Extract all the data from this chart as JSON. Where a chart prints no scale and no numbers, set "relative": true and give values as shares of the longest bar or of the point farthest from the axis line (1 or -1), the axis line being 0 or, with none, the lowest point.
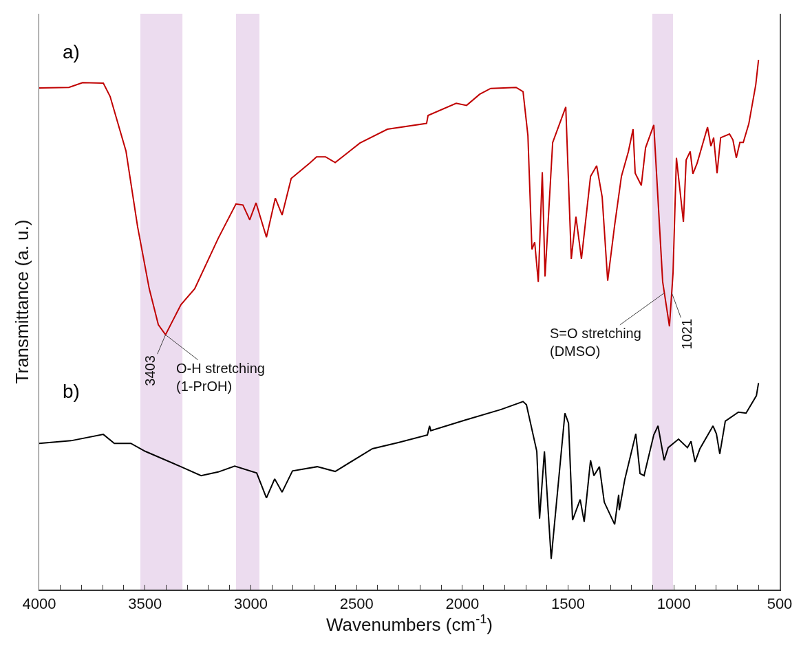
{
  "chart_data": {
    "type": "line",
    "relative": true,
    "xlabel": "Wavenumbers (cm$^{-1}$)",
    "ylabel": "Transmittance (a. u.)",
    "xlim": [
      4000,
      500
    ],
    "xticks": [
      4000,
      {
        "value": 3900,
        "label": null
      },
      {
        "value": 3800,
        "label": null
      },
      {
        "value": 3700,
        "label": null
      },
      {
        "value": 3600,
        "label": null
      },
      3500,
      {
        "value": 3400,
        "label": null
      },
      {
        "value": 3300,
        "label": null
      },
      {
        "value": 3200,
        "label": null
      },
      {
        "value": 3100,
        "label": null
      },
      3000,
      {
        "value": 2900,
        "label": null
      },
      {
        "value": 2800,
        "label": null
      },
      {
        "value": 2700,
        "label": null
      },
      {
        "value": 2600,
        "label": null
      },
      2500,
      {
        "value": 2400,
        "label": null
      },
      {
        "value": 2300,
        "label": null
      },
      {
        "value": 2200,
        "label": null
      },
      {
        "value": 2100,
        "label": null
      },
      2000,
      {
        "value": 1900,
        "label": null
      },
      {
        "value": 1800,
        "label": null
      },
      {
        "value": 1700,
        "label": null
      },
      {
        "value": 1600,
        "label": null
      },
      1500,
      {
        "value": 1400,
        "label": null
      },
      {
        "value": 1300,
        "label": null
      },
      {
        "value": 1200,
        "label": null
      },
      {
        "value": 1100,
        "label": null
      },
      1000,
      {
        "value": 900,
        "label": null
      },
      {
        "value": 800,
        "label": null
      },
      {
        "value": 700,
        "label": null
      },
      {
        "value": 600,
        "label": null
      },
      500
    ],
    "grid": false,
    "legend": false,
    "marker": "none",
    "line_style": "solid",
    "series": [
      {
        "name": "a)",
        "color": "#c00000",
        "x": [
          4000,
          3860,
          3795,
          3697,
          3665,
          3590,
          3535,
          3480,
          3437,
          3403,
          3330,
          3265,
          3154,
          3070,
          3037,
          3005,
          2975,
          2926,
          2884,
          2852,
          2809,
          2764,
          2722,
          2689,
          2647,
          2601,
          2484,
          2354,
          2169,
          2162,
          2029,
          1980,
          1918,
          1866,
          1746,
          1713,
          1690,
          1671,
          1658,
          1641,
          1622,
          1609,
          1573,
          1511,
          1485,
          1463,
          1437,
          1394,
          1365,
          1339,
          1313,
          1280,
          1248,
          1215,
          1193,
          1183,
          1154,
          1134,
          1095,
          1053,
          1021,
          1004,
          988,
          955,
          942,
          923,
          910,
          890,
          841,
          825,
          812,
          796,
          779,
          737,
          721,
          705,
          688,
          672,
          646,
          613,
          600
        ],
        "values": [
          0.947,
          0.948,
          0.957,
          0.956,
          0.931,
          0.828,
          0.685,
          0.568,
          0.5,
          0.481,
          0.538,
          0.568,
          0.663,
          0.728,
          0.726,
          0.698,
          0.73,
          0.665,
          0.739,
          0.707,
          0.776,
          0.791,
          0.805,
          0.817,
          0.817,
          0.806,
          0.843,
          0.869,
          0.88,
          0.895,
          0.918,
          0.914,
          0.935,
          0.946,
          0.948,
          0.94,
          0.857,
          0.642,
          0.656,
          0.581,
          0.788,
          0.591,
          0.844,
          0.911,
          0.624,
          0.704,
          0.624,
          0.78,
          0.8,
          0.741,
          0.583,
          0.688,
          0.78,
          0.827,
          0.869,
          0.786,
          0.763,
          0.834,
          0.877,
          0.581,
          0.497,
          0.598,
          0.815,
          0.694,
          0.811,
          0.827,
          0.785,
          0.805,
          0.873,
          0.837,
          0.853,
          0.786,
          0.853,
          0.86,
          0.849,
          0.815,
          0.844,
          0.844,
          0.879,
          0.953,
          1.0
        ]
      },
      {
        "name": "b)",
        "color": "#000000",
        "x": [
          4000,
          3850,
          3697,
          3645,
          3567,
          3499,
          3336,
          3235,
          3154,
          3076,
          2972,
          2926,
          2887,
          2852,
          2803,
          2686,
          2601,
          2425,
          2299,
          2165,
          2155,
          2149,
          1986,
          1817,
          1713,
          1697,
          1648,
          1635,
          1612,
          1580,
          1515,
          1498,
          1479,
          1443,
          1424,
          1394,
          1378,
          1352,
          1329,
          1280,
          1261,
          1258,
          1232,
          1180,
          1160,
          1141,
          1095,
          1075,
          1046,
          1027,
          978,
          936,
          919,
          900,
          877,
          815,
          799,
          783,
          757,
          695,
          659,
          610,
          600
        ],
        "values": [
          0.276,
          0.281,
          0.293,
          0.276,
          0.276,
          0.261,
          0.233,
          0.215,
          0.222,
          0.233,
          0.22,
          0.173,
          0.209,
          0.184,
          0.224,
          0.232,
          0.223,
          0.266,
          0.278,
          0.292,
          0.309,
          0.3,
          0.32,
          0.34,
          0.355,
          0.349,
          0.261,
          0.134,
          0.261,
          0.058,
          0.333,
          0.314,
          0.131,
          0.17,
          0.128,
          0.244,
          0.215,
          0.232,
          0.165,
          0.123,
          0.179,
          0.15,
          0.208,
          0.294,
          0.219,
          0.215,
          0.292,
          0.309,
          0.244,
          0.268,
          0.284,
          0.268,
          0.28,
          0.241,
          0.266,
          0.309,
          0.294,
          0.256,
          0.318,
          0.335,
          0.333,
          0.366,
          0.39
        ]
      }
    ],
    "bands": [
      {
        "axis": "x",
        "from": 3522,
        "to": 3323,
        "color": "#ecdcef"
      },
      {
        "axis": "x",
        "from": 3070,
        "to": 2959,
        "color": "#ecdcef"
      },
      {
        "axis": "x",
        "from": 1102,
        "to": 1004,
        "color": "#ecdcef"
      }
    ],
    "annotations": [
      {
        "text": "3403",
        "x": 3403,
        "y": 0.481
      },
      {
        "text": "O-H stretching\n(1-PrOH)",
        "x": 3403,
        "y": 0.481
      },
      {
        "text": "S=O stretching\n(DMSO)",
        "x": 1045,
        "y": 0.56
      },
      {
        "text": "1021",
        "x": 1010,
        "y": 0.56
      }
    ]
  }
}
